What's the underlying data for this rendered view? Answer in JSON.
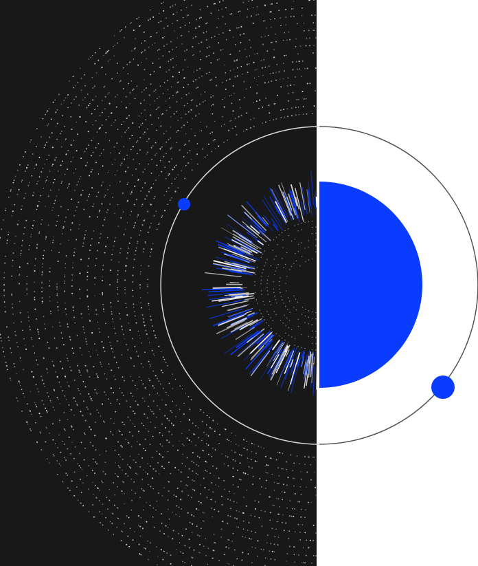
{
  "artwork": {
    "colors": {
      "dark_panel": "#181818",
      "light_panel": "#ffffff",
      "accent_blue": "#0a3cff",
      "dot_color": "#ffffff",
      "orbit_line": "#d9d9d9"
    },
    "elements": [
      "dark-half-panel",
      "light-half-panel",
      "outer-dotted-halo",
      "orbit-ring",
      "left-orbit-planet",
      "right-orbit-planet",
      "radial-burst-core",
      "blue-half-disc"
    ]
  }
}
